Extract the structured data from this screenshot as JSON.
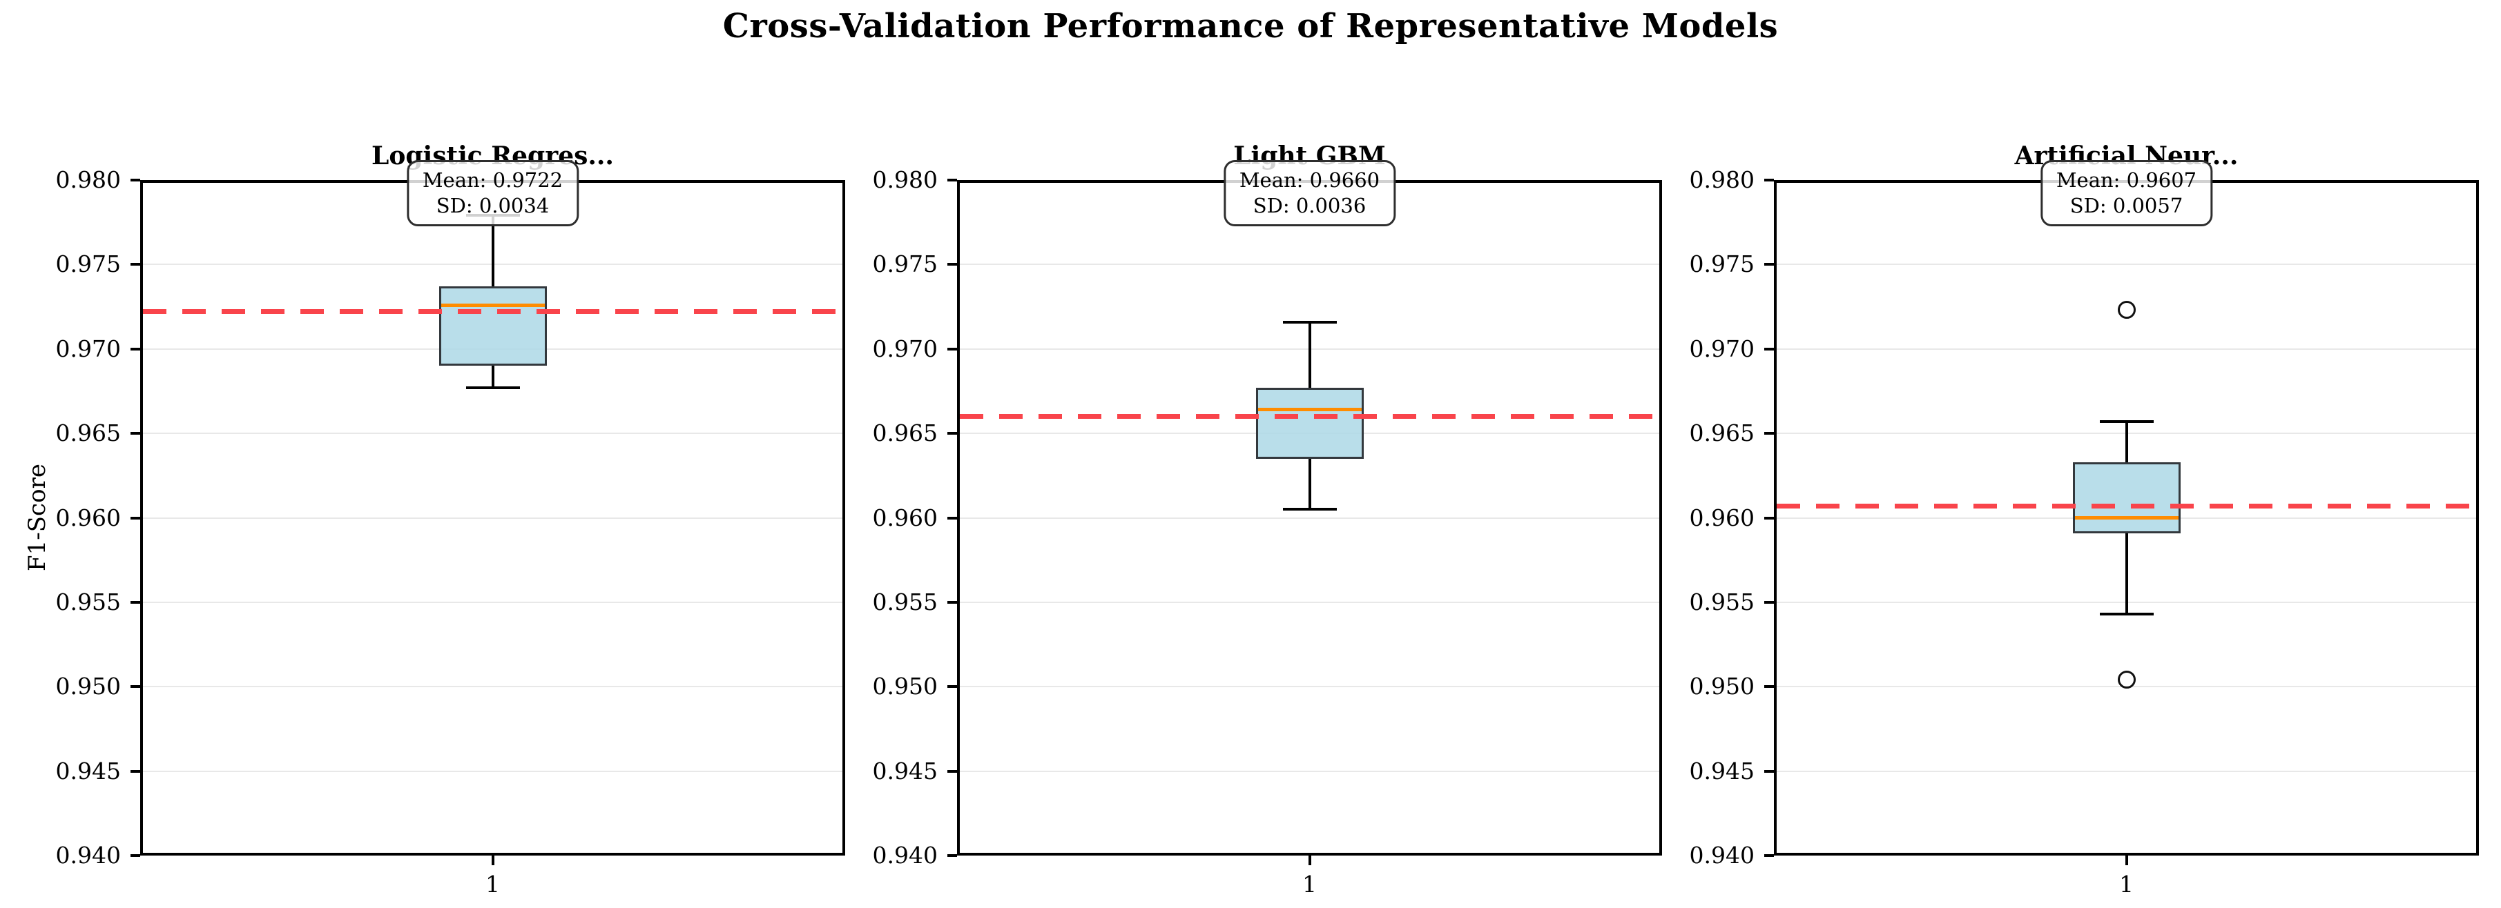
{
  "figure": {
    "title": "Cross-Validation Performance of Representative Models",
    "background": "#ffffff"
  },
  "axis": {
    "ylabel": "F1-Score",
    "ylim": [
      0.94,
      0.98
    ],
    "ytick_step": 0.005,
    "y_ticks": [
      "0.980",
      "0.975",
      "0.970",
      "0.965",
      "0.960",
      "0.955",
      "0.950",
      "0.945",
      "0.940"
    ],
    "x_tick": "1",
    "grid": "horizontal-only"
  },
  "colors": {
    "box_fill": "rgba(173,216,230,0.85)",
    "box_edge": "#33383d",
    "whisker": "#000000",
    "cap": "#000000",
    "median": "#ff8c00",
    "mean_line": "#f9444b",
    "grid": "#e8e8e8",
    "spine": "#000000",
    "outlier_edge": "#111111"
  },
  "chart_data": [
    {
      "type": "box",
      "title": "Logistic Regres...",
      "x_category": "1",
      "annotation": {
        "mean_label": "Mean: 0.9722",
        "sd_label": "SD: 0.0034"
      },
      "mean": 0.9722,
      "sd": 0.0034,
      "stats": {
        "whislo": 0.9677,
        "q1": 0.969,
        "med": 0.9726,
        "q3": 0.9737,
        "whishi": 0.9779,
        "outliers": []
      }
    },
    {
      "type": "box",
      "title": "Light GBM",
      "x_category": "1",
      "annotation": {
        "mean_label": "Mean: 0.9660",
        "sd_label": "SD: 0.0036"
      },
      "mean": 0.966,
      "sd": 0.0036,
      "stats": {
        "whislo": 0.9605,
        "q1": 0.9635,
        "med": 0.9664,
        "q3": 0.9677,
        "whishi": 0.9716,
        "outliers": []
      }
    },
    {
      "type": "box",
      "title": "Artificial Neur...",
      "x_category": "1",
      "annotation": {
        "mean_label": "Mean: 0.9607",
        "sd_label": "SD: 0.0057"
      },
      "mean": 0.9607,
      "sd": 0.0057,
      "stats": {
        "whislo": 0.9543,
        "q1": 0.9591,
        "med": 0.96,
        "q3": 0.9633,
        "whishi": 0.9657,
        "outliers": [
          0.9723,
          0.9504
        ]
      }
    }
  ]
}
